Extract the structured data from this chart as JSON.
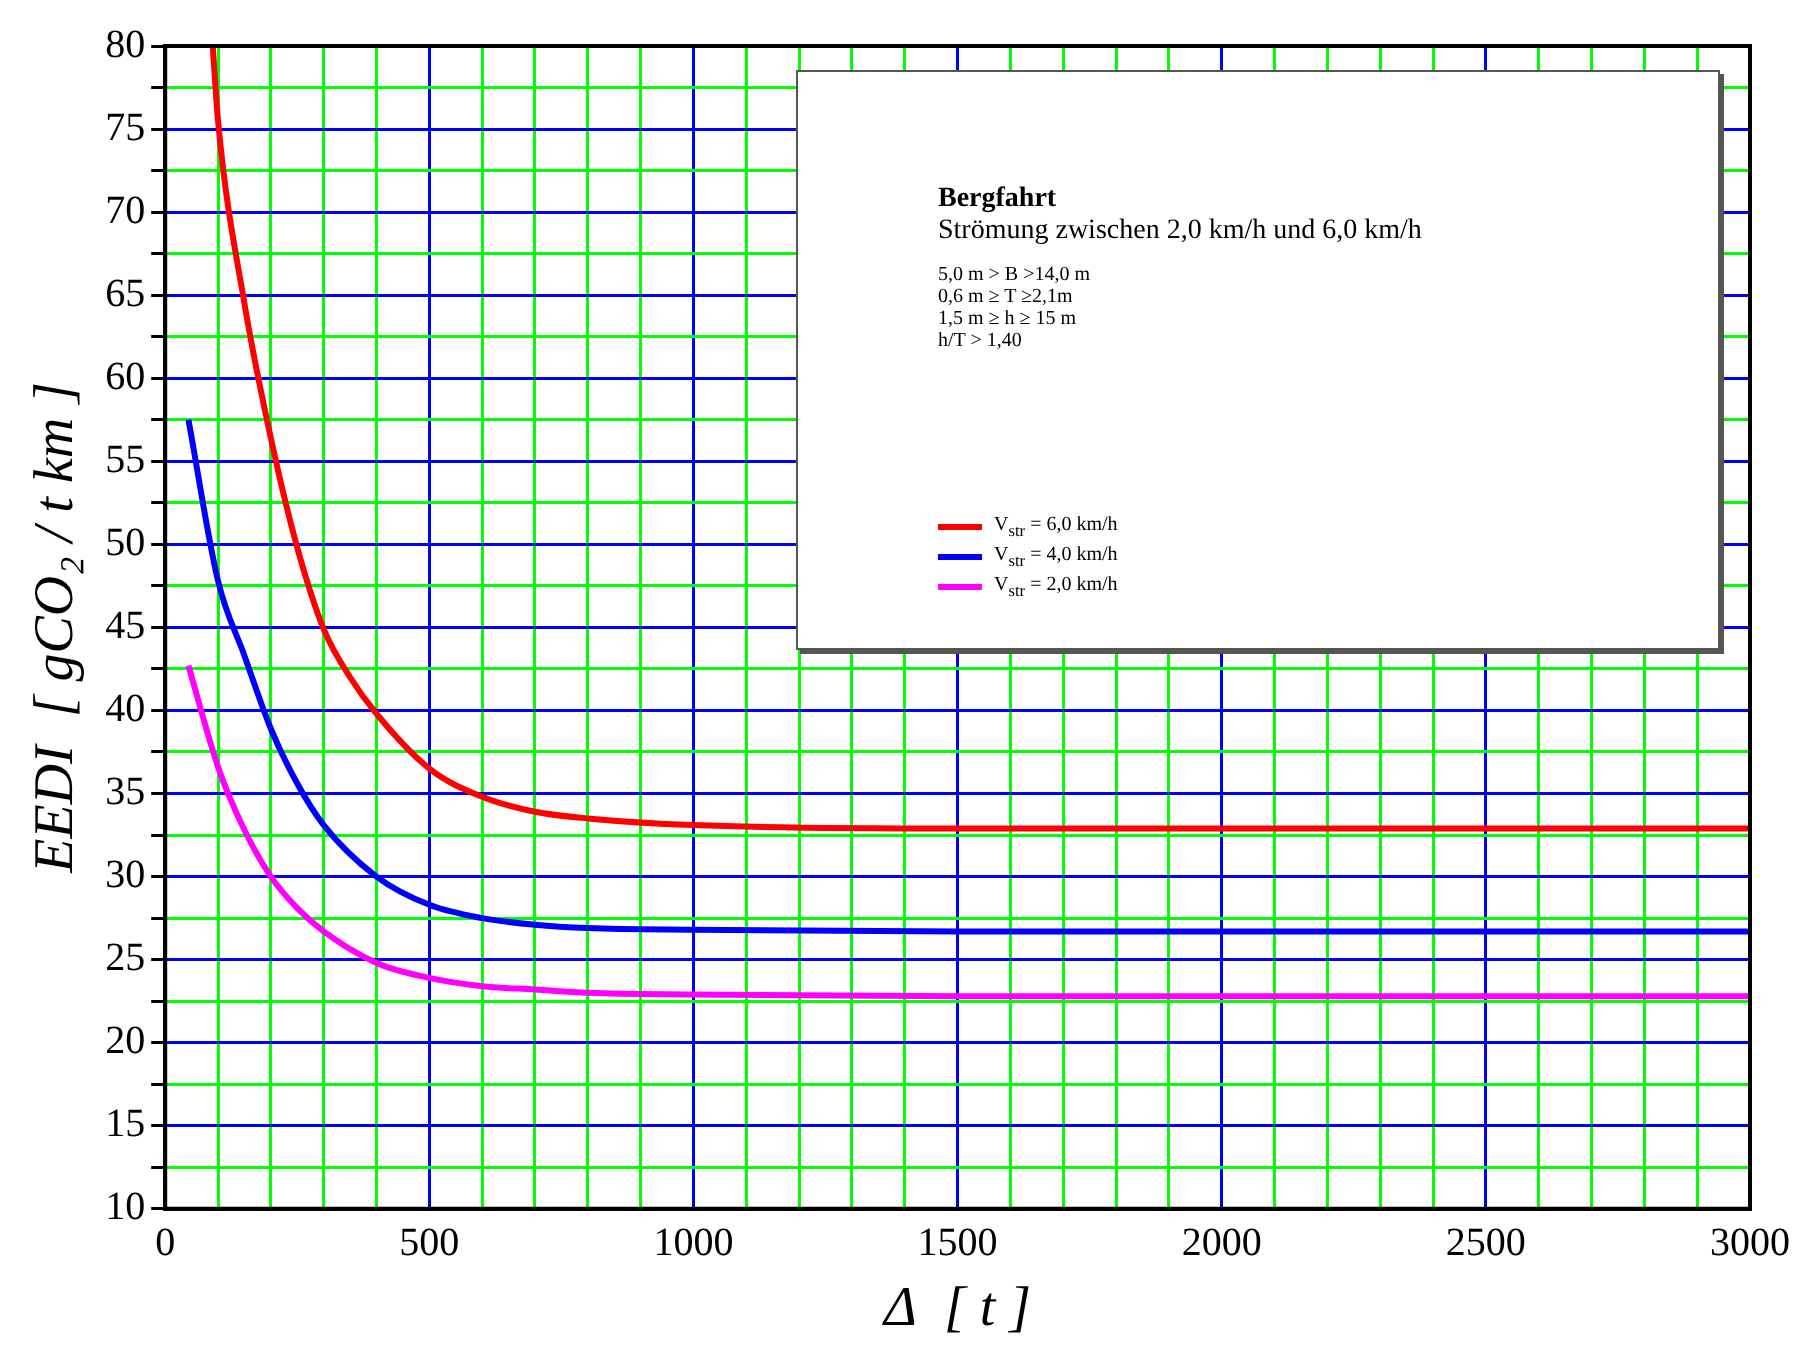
{
  "chart_data": {
    "type": "line",
    "xlabel": "Δ  [ t ]",
    "ylabel": "EEDI  [ gCO₂ / t km ]",
    "annotations": [
      "Bergfahrt",
      "Strömung zwischen 2,0 km/h und 6,0 km/h",
      "5,0 m > B >14,0 m",
      "0,6 m ≥ T ≥2,1m",
      "1,5 m ≥ h ≥ 15 m",
      "h/T > 1,40"
    ],
    "xlim": [
      0,
      3000
    ],
    "xticks": [
      0,
      {
        "value": 100,
        "label": null
      },
      {
        "value": 200,
        "label": null
      },
      {
        "value": 300,
        "label": null
      },
      {
        "value": 400,
        "label": null
      },
      500,
      {
        "value": 600,
        "label": null
      },
      {
        "value": 700,
        "label": null
      },
      {
        "value": 800,
        "label": null
      },
      {
        "value": 900,
        "label": null
      },
      1000,
      {
        "value": 1100,
        "label": null
      },
      {
        "value": 1200,
        "label": null
      },
      {
        "value": 1300,
        "label": null
      },
      {
        "value": 1400,
        "label": null
      },
      1500,
      {
        "value": 1600,
        "label": null
      },
      {
        "value": 1700,
        "label": null
      },
      {
        "value": 1800,
        "label": null
      },
      {
        "value": 1900,
        "label": null
      },
      2000,
      {
        "value": 2100,
        "label": null
      },
      {
        "value": 2200,
        "label": null
      },
      {
        "value": 2300,
        "label": null
      },
      {
        "value": 2400,
        "label": null
      },
      2500,
      {
        "value": 2600,
        "label": null
      },
      {
        "value": 2700,
        "label": null
      },
      {
        "value": 2800,
        "label": null
      },
      {
        "value": 2900,
        "label": null
      },
      3000
    ],
    "ylim": [
      10,
      80
    ],
    "yticks": [
      10,
      {
        "value": 12.5,
        "label": null
      },
      15,
      {
        "value": 17.5,
        "label": null
      },
      20,
      {
        "value": 22.5,
        "label": null
      },
      25,
      {
        "value": 27.5,
        "label": null
      },
      30,
      {
        "value": 32.5,
        "label": null
      },
      35,
      {
        "value": 37.5,
        "label": null
      },
      40,
      {
        "value": 42.5,
        "label": null
      },
      45,
      {
        "value": 47.5,
        "label": null
      },
      50,
      {
        "value": 52.5,
        "label": null
      },
      55,
      {
        "value": 57.5,
        "label": null
      },
      60,
      {
        "value": 62.5,
        "label": null
      },
      65,
      {
        "value": 67.5,
        "label": null
      },
      70,
      {
        "value": 72.5,
        "label": null
      },
      75,
      {
        "value": 77.5,
        "label": null
      },
      80
    ],
    "grid": true,
    "legend": "top right",
    "line_style": "solid",
    "marker": "none",
    "series": [
      {
        "name": "V$_{str}$ =  6,0 km/h",
        "color": "#ff0000",
        "x": [
          90,
          100,
          150,
          200,
          250,
          300,
          350,
          400,
          500,
          600,
          700,
          800,
          1000,
          1500,
          2000,
          3000
        ],
        "values": [
          80,
          75.5,
          64.5,
          56.4,
          49.8,
          44.9,
          42.0,
          39.8,
          36.5,
          34.8,
          33.9,
          33.5,
          33.1,
          32.9,
          32.9,
          32.9
        ]
      },
      {
        "name": "V$_{str}$ =  4,0 km/h",
        "color": "#0000ff",
        "x": [
          44,
          100,
          150,
          200,
          250,
          300,
          400,
          500,
          600,
          700,
          800,
          1000,
          1500,
          2000,
          3000
        ],
        "values": [
          57.5,
          47.8,
          43.3,
          38.9,
          35.6,
          33.1,
          30.0,
          28.3,
          27.5,
          27.1,
          26.9,
          26.8,
          26.7,
          26.7,
          26.7
        ]
      },
      {
        "name": "V$_{str}$ =  2,0 km/h",
        "color": "#ff00ff",
        "x": [
          44,
          100,
          150,
          200,
          250,
          300,
          400,
          500,
          600,
          700,
          800,
          1000,
          1500,
          2000,
          3000
        ],
        "values": [
          42.7,
          36.6,
          32.8,
          30.0,
          28.1,
          26.7,
          24.8,
          23.9,
          23.4,
          23.2,
          23.0,
          22.9,
          22.8,
          22.8,
          22.8
        ]
      }
    ]
  }
}
